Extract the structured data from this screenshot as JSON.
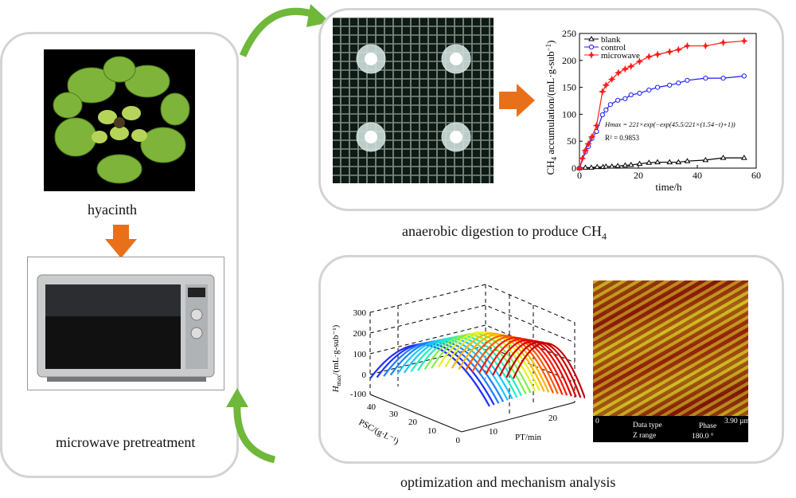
{
  "left": {
    "plant_label": "hyacinth",
    "microwave_label": "microwave pretreatment"
  },
  "top": {
    "caption_main": "anaerobic digestion to produce CH",
    "caption_sub": "4"
  },
  "bottom": {
    "caption": "optimization and mechanism analysis"
  },
  "colors": {
    "arrow_orange": "#e8701a",
    "arrow_green": "#6fb83a",
    "panel_border": "#d4d4d4"
  },
  "chart_data": {
    "type": "line",
    "xlabel": "time/h",
    "ylabel": "CH4 accumulation/(mL·g-sub⁻¹)",
    "xlim": [
      0,
      60
    ],
    "ylim": [
      0,
      250
    ],
    "xticks": [
      "0",
      "20",
      "40",
      "60"
    ],
    "yticks": [
      "0",
      "50",
      "100",
      "150",
      "200",
      "250"
    ],
    "legend_position": "top-left",
    "annotation": "Hmax = 221×exp(−exp(45.5/221×(1.54−t)+1))",
    "r2": "R² = 0.9853",
    "series": [
      {
        "name": "blank",
        "color": "#000000",
        "marker": "triangle",
        "x": [
          0,
          2,
          4,
          6,
          8,
          9,
          11,
          13,
          15.5,
          17.5,
          20.4,
          23.6,
          26.5,
          30.6,
          33.6,
          36.6,
          42.8,
          48.8,
          55.9
        ],
        "y": [
          0,
          1,
          1,
          2,
          2,
          3,
          3,
          4,
          5,
          6,
          8,
          10,
          11,
          11,
          11,
          13,
          15,
          19,
          19
        ]
      },
      {
        "name": "control",
        "color": "#1a1aff",
        "marker": "circle",
        "x": [
          0,
          2,
          3,
          4.2,
          5.8,
          7.8,
          9,
          10.5,
          13,
          15.5,
          17.5,
          20.4,
          23.6,
          26.5,
          30.6,
          33.6,
          36.6,
          42.8,
          48.8,
          55.9
        ],
        "y": [
          0,
          30,
          40,
          55,
          68,
          99,
          108,
          118,
          126,
          129,
          136,
          139,
          145,
          150,
          154,
          158,
          163,
          167,
          167,
          171
        ]
      },
      {
        "name": "microwave",
        "color": "#ff1a1a",
        "marker": "star",
        "x": [
          0,
          1,
          2,
          3,
          4.2,
          5.8,
          7.8,
          9,
          11,
          13.2,
          15.5,
          17.5,
          20.4,
          23.6,
          26.5,
          30.6,
          33.6,
          36.6,
          42.8,
          48.8,
          55.9
        ],
        "y": [
          0,
          18,
          33,
          45,
          58,
          79,
          142,
          154,
          165,
          177,
          184,
          189,
          198,
          207,
          211,
          216,
          220,
          227,
          227,
          233,
          236
        ]
      }
    ]
  },
  "surface": {
    "zlabel_main": "H",
    "zlabel_sub": "max",
    "zlabel_rest": "/(mL·g-sub⁻¹)",
    "zticks": [
      "300",
      "200",
      "100",
      "0",
      "-100"
    ],
    "yticks": [
      "40",
      "30",
      "20",
      "10",
      "0"
    ],
    "xticks": [
      "10",
      "20"
    ],
    "ylabel": "PSC/(g·L⁻¹)",
    "xlabel": "PT/min"
  },
  "afm": {
    "zero": "0",
    "data_type_label": "Data type",
    "data_type_value": "Phase",
    "z_range_label": "Z range",
    "z_range_value": "180.0 °",
    "scale": "3.90 µm"
  }
}
